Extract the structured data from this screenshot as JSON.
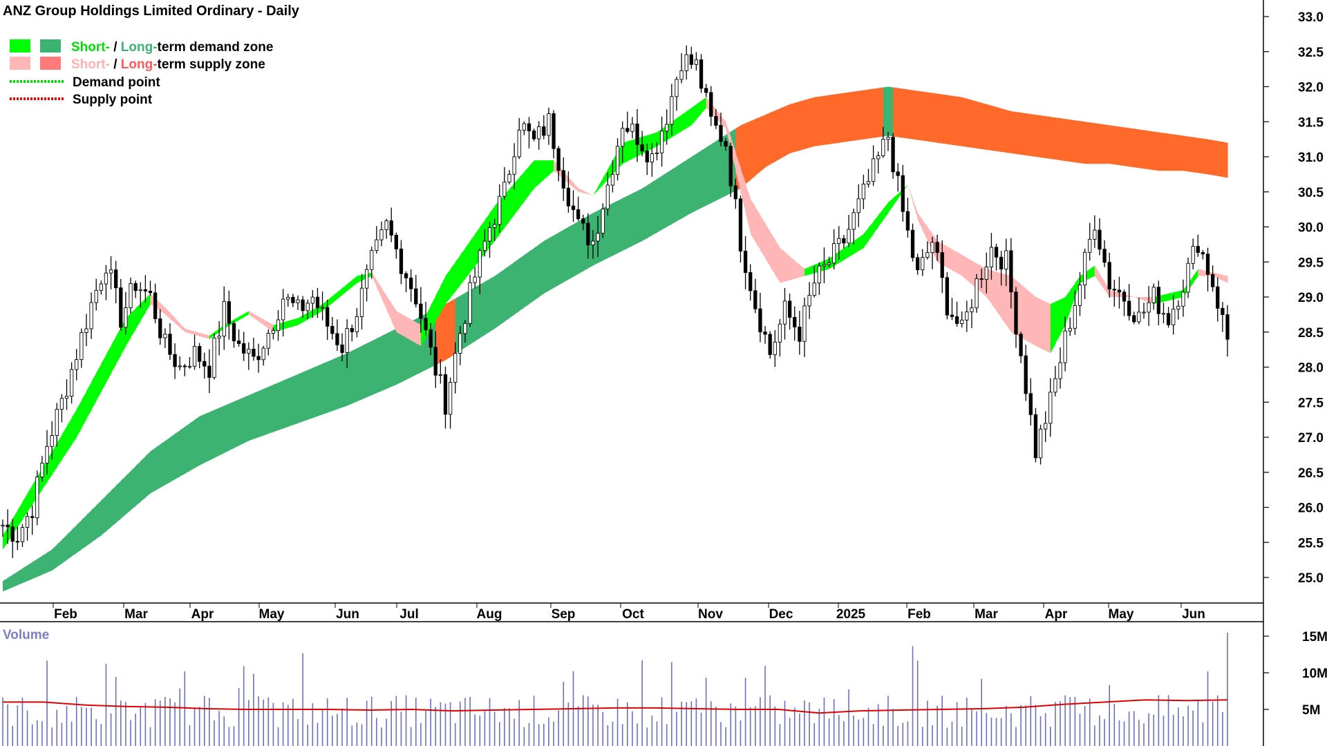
{
  "chart_data": {
    "type": "candlestick",
    "title": "ANZ Group Holdings Limited Ordinary - Daily",
    "legend": {
      "items": [
        {
          "label_parts": [
            "Short-",
            " / ",
            "Long-",
            "term demand zone"
          ],
          "colors": [
            "#00ff00",
            "#000000",
            "#3cb371",
            "#000000"
          ]
        },
        {
          "label_parts": [
            "Short-",
            " / ",
            "Long-",
            "term supply zone"
          ],
          "colors": [
            "#ffb6b6",
            "#000000",
            "#ff6a2a",
            "#000000"
          ]
        },
        {
          "label": "Demand point",
          "color": "#00dd00"
        },
        {
          "label": "Supply point",
          "color": "#ff0000"
        }
      ],
      "placement": "top-left"
    },
    "price_axis": {
      "ticks": [
        "25.0",
        "25.5",
        "26.0",
        "26.5",
        "27.0",
        "27.5",
        "28.0",
        "28.5",
        "29.0",
        "29.5",
        "30.0",
        "30.5",
        "31.0",
        "31.5",
        "32.0",
        "32.5",
        "33.0"
      ],
      "range": [
        24.8,
        33.2
      ]
    },
    "x_axis": {
      "labels": [
        "Feb",
        "Mar",
        "Apr",
        "May",
        "Jun",
        "Jul",
        "Aug",
        "Sep",
        "Oct",
        "Nov",
        "Dec",
        "2025",
        "Feb",
        "Mar",
        "Apr",
        "May",
        "Jun"
      ]
    },
    "volume": {
      "label": "Volume",
      "ticks": [
        "5M",
        "10M",
        "15M"
      ],
      "range": [
        0,
        16
      ],
      "average_line_color": "#e00000",
      "average_line": [
        6.0,
        6.0,
        5.6,
        5.4,
        5.3,
        5.1,
        5.0,
        5.0,
        5.0,
        4.9,
        5.0,
        4.8,
        4.9,
        5.0,
        5.1,
        5.2,
        5.2,
        5.1,
        5.0,
        5.0,
        4.5,
        4.8,
        4.9,
        5.0,
        5.1,
        5.3,
        5.7,
        6.0,
        6.3,
        6.2,
        6.3
      ]
    },
    "price_path": [
      [
        0,
        25.75
      ],
      [
        3,
        25.6
      ],
      [
        6,
        26.0
      ],
      [
        9,
        26.9
      ],
      [
        12,
        27.5
      ],
      [
        15,
        28.2
      ],
      [
        18,
        28.9
      ],
      [
        21,
        29.5
      ],
      [
        24,
        28.7
      ],
      [
        27,
        29.2
      ],
      [
        30,
        29.0
      ],
      [
        33,
        28.3
      ],
      [
        36,
        28.0
      ],
      [
        39,
        28.2
      ],
      [
        42,
        28.0
      ],
      [
        45,
        28.8
      ],
      [
        48,
        28.3
      ],
      [
        51,
        28.1
      ],
      [
        54,
        28.5
      ],
      [
        57,
        29.0
      ],
      [
        60,
        28.8
      ],
      [
        63,
        29.0
      ],
      [
        66,
        28.6
      ],
      [
        69,
        28.3
      ],
      [
        72,
        28.8
      ],
      [
        75,
        29.5
      ],
      [
        78,
        30.0
      ],
      [
        81,
        29.5
      ],
      [
        84,
        29.0
      ],
      [
        87,
        28.2
      ],
      [
        90,
        27.5
      ],
      [
        93,
        28.5
      ],
      [
        96,
        29.3
      ],
      [
        99,
        30.0
      ],
      [
        102,
        30.5
      ],
      [
        105,
        31.5
      ],
      [
        108,
        31.2
      ],
      [
        111,
        31.5
      ],
      [
        114,
        30.7
      ],
      [
        117,
        30.0
      ],
      [
        120,
        29.8
      ],
      [
        123,
        30.6
      ],
      [
        126,
        31.5
      ],
      [
        129,
        31.3
      ],
      [
        132,
        31.0
      ],
      [
        135,
        31.6
      ],
      [
        138,
        32.4
      ],
      [
        141,
        32.3
      ],
      [
        144,
        31.5
      ],
      [
        147,
        31.2
      ],
      [
        150,
        29.8
      ],
      [
        153,
        28.9
      ],
      [
        156,
        28.2
      ],
      [
        159,
        28.8
      ],
      [
        162,
        28.5
      ],
      [
        165,
        29.2
      ],
      [
        168,
        29.5
      ],
      [
        171,
        29.8
      ],
      [
        174,
        30.3
      ],
      [
        177,
        30.8
      ],
      [
        180,
        31.3
      ],
      [
        183,
        30.2
      ],
      [
        186,
        29.3
      ],
      [
        189,
        29.8
      ],
      [
        192,
        28.9
      ],
      [
        195,
        28.5
      ],
      [
        198,
        29.2
      ],
      [
        201,
        29.7
      ],
      [
        204,
        29.5
      ],
      [
        207,
        28.2
      ],
      [
        210,
        26.8
      ],
      [
        213,
        27.5
      ],
      [
        216,
        28.4
      ],
      [
        219,
        29.2
      ],
      [
        222,
        30.1
      ],
      [
        225,
        29.2
      ],
      [
        228,
        29.0
      ],
      [
        231,
        28.7
      ],
      [
        234,
        29.0
      ],
      [
        237,
        28.7
      ],
      [
        240,
        29.2
      ],
      [
        243,
        29.8
      ],
      [
        246,
        29.2
      ],
      [
        249,
        28.4
      ]
    ],
    "short_term_zone": [
      [
        0,
        25.6,
        25.4
      ],
      [
        15,
        27.4,
        27.0
      ],
      [
        25,
        28.7,
        28.3
      ],
      [
        30,
        29.05,
        28.9
      ],
      [
        33,
        28.85,
        28.75
      ],
      [
        37,
        28.55,
        28.5
      ],
      [
        42,
        28.45,
        28.4
      ],
      [
        45,
        28.6,
        28.55
      ],
      [
        50,
        28.8,
        28.75
      ],
      [
        55,
        28.6,
        28.5
      ],
      [
        60,
        28.7,
        28.6
      ],
      [
        65,
        28.9,
        28.8
      ],
      [
        72,
        29.3,
        29.2
      ],
      [
        75,
        29.35,
        29.3
      ],
      [
        80,
        28.8,
        28.5
      ],
      [
        85,
        28.6,
        28.3
      ],
      [
        90,
        29.3,
        28.9
      ],
      [
        100,
        30.3,
        29.8
      ],
      [
        108,
        30.95,
        30.55
      ],
      [
        112,
        30.95,
        30.8
      ],
      [
        117,
        30.55,
        30.5
      ],
      [
        120,
        30.45,
        30.45
      ],
      [
        126,
        31.2,
        30.9
      ],
      [
        133,
        31.35,
        31.15
      ],
      [
        140,
        31.7,
        31.45
      ],
      [
        143,
        31.85,
        31.7
      ],
      [
        147,
        31.5,
        31.4
      ],
      [
        152,
        30.4,
        29.9
      ],
      [
        158,
        29.7,
        29.2
      ],
      [
        163,
        29.4,
        29.3
      ],
      [
        168,
        29.55,
        29.4
      ],
      [
        175,
        29.9,
        29.7
      ],
      [
        180,
        30.35,
        30.2
      ],
      [
        184,
        30.6,
        30.6
      ],
      [
        186,
        30.2,
        30.1
      ],
      [
        190,
        29.8,
        29.5
      ],
      [
        195,
        29.6,
        29.3
      ],
      [
        200,
        29.4,
        29.0
      ],
      [
        205,
        29.3,
        28.5
      ],
      [
        210,
        29.0,
        28.3
      ],
      [
        213,
        28.9,
        28.2
      ],
      [
        216,
        29.0,
        28.6
      ],
      [
        219,
        29.3,
        29.2
      ],
      [
        222,
        29.45,
        29.3
      ],
      [
        225,
        29.1,
        29.0
      ],
      [
        230,
        29.0,
        29.0
      ],
      [
        234,
        29.0,
        28.9
      ],
      [
        240,
        29.1,
        29.0
      ],
      [
        243,
        29.4,
        29.3
      ],
      [
        246,
        29.35,
        29.3
      ],
      [
        249,
        29.3,
        29.2
      ]
    ],
    "long_term_zone": [
      [
        0,
        24.95,
        24.8
      ],
      [
        10,
        25.4,
        25.1
      ],
      [
        20,
        26.1,
        25.6
      ],
      [
        30,
        26.8,
        26.2
      ],
      [
        40,
        27.3,
        26.6
      ],
      [
        50,
        27.6,
        26.95
      ],
      [
        60,
        27.9,
        27.2
      ],
      [
        70,
        28.2,
        27.45
      ],
      [
        80,
        28.55,
        27.75
      ],
      [
        90,
        28.9,
        28.1
      ],
      [
        100,
        29.3,
        28.55
      ],
      [
        110,
        29.8,
        29.05
      ],
      [
        120,
        30.2,
        29.45
      ],
      [
        130,
        30.55,
        29.8
      ],
      [
        140,
        31.0,
        30.2
      ],
      [
        150,
        31.45,
        30.55
      ],
      [
        155,
        31.6,
        30.85
      ],
      [
        160,
        31.75,
        31.05
      ],
      [
        165,
        31.85,
        31.15
      ],
      [
        170,
        31.9,
        31.2
      ],
      [
        175,
        31.95,
        31.25
      ],
      [
        180,
        32.0,
        31.3
      ],
      [
        185,
        31.95,
        31.25
      ],
      [
        190,
        31.9,
        31.2
      ],
      [
        195,
        31.85,
        31.15
      ],
      [
        200,
        31.75,
        31.1
      ],
      [
        205,
        31.65,
        31.05
      ],
      [
        210,
        31.6,
        31.0
      ],
      [
        215,
        31.55,
        30.95
      ],
      [
        220,
        31.5,
        30.9
      ],
      [
        225,
        31.45,
        30.9
      ],
      [
        230,
        31.4,
        30.85
      ],
      [
        235,
        31.35,
        30.8
      ],
      [
        240,
        31.3,
        30.8
      ],
      [
        245,
        31.25,
        30.75
      ],
      [
        249,
        31.2,
        30.7
      ]
    ]
  }
}
